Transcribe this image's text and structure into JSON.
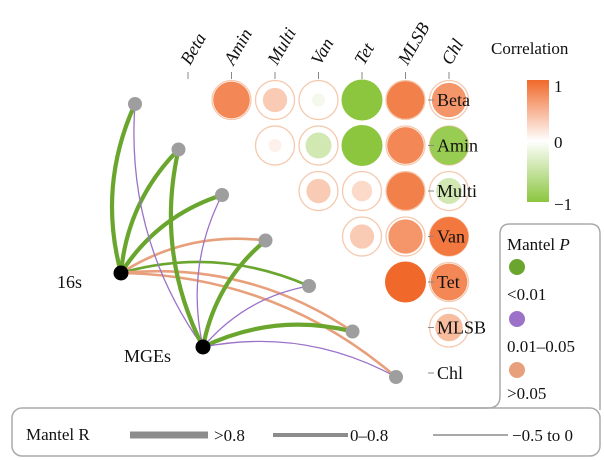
{
  "chart_data": {
    "type": "heatmap",
    "subtype": "correlation-matrix-with-mantel-links",
    "variables": [
      "Beta",
      "Amin",
      "Multi",
      "Van",
      "Tet",
      "MLSB",
      "Chl"
    ],
    "correlations": [
      {
        "row": "Beta",
        "col": "Amin",
        "r": 0.8
      },
      {
        "row": "Beta",
        "col": "Multi",
        "r": 0.35
      },
      {
        "row": "Beta",
        "col": "Van",
        "r": -0.1
      },
      {
        "row": "Beta",
        "col": "Tet",
        "r": -1.0
      },
      {
        "row": "Beta",
        "col": "MLSB",
        "r": 0.85
      },
      {
        "row": "Beta",
        "col": "Chl",
        "r": 0.7
      },
      {
        "row": "Amin",
        "col": "Multi",
        "r": 0.1
      },
      {
        "row": "Amin",
        "col": "Van",
        "r": -0.4
      },
      {
        "row": "Amin",
        "col": "Tet",
        "r": -1.0
      },
      {
        "row": "Amin",
        "col": "MLSB",
        "r": 0.8
      },
      {
        "row": "Amin",
        "col": "Chl",
        "r": -0.9
      },
      {
        "row": "Multi",
        "col": "Van",
        "r": 0.35
      },
      {
        "row": "Multi",
        "col": "Tet",
        "r": 0.25
      },
      {
        "row": "Multi",
        "col": "MLSB",
        "r": 0.85
      },
      {
        "row": "Multi",
        "col": "Chl",
        "r": -0.4
      },
      {
        "row": "Van",
        "col": "Tet",
        "r": 0.35
      },
      {
        "row": "Van",
        "col": "MLSB",
        "r": 0.7
      },
      {
        "row": "Van",
        "col": "Chl",
        "r": 0.9
      },
      {
        "row": "Tet",
        "col": "MLSB",
        "r": 1.0
      },
      {
        "row": "Tet",
        "col": "Chl",
        "r": 0.8
      },
      {
        "row": "MLSB",
        "col": "Chl",
        "r": 0.45
      }
    ],
    "mantel_sources": [
      "16s",
      "MGEs"
    ],
    "mantel_links": [
      {
        "from": "16s",
        "to": "Beta",
        "p_class": "<0.01",
        "r_class": ">0.8"
      },
      {
        "from": "16s",
        "to": "Amin",
        "p_class": "<0.01",
        "r_class": ">0.8"
      },
      {
        "from": "16s",
        "to": "Multi",
        "p_class": "<0.01",
        "r_class": ">0.8"
      },
      {
        "from": "16s",
        "to": "Van",
        "p_class": ">0.05",
        "r_class": "0–0.8"
      },
      {
        "from": "16s",
        "to": "Tet",
        "p_class": "<0.01",
        "r_class": "0–0.8"
      },
      {
        "from": "16s",
        "to": "MLSB",
        "p_class": ">0.05",
        "r_class": "0–0.8"
      },
      {
        "from": "16s",
        "to": "Chl",
        "p_class": ">0.05",
        "r_class": "0–0.8"
      },
      {
        "from": "MGEs",
        "to": "Beta",
        "p_class": "0.01–0.05",
        "r_class": "−0.5 to 0"
      },
      {
        "from": "MGEs",
        "to": "Amin",
        "p_class": "<0.01",
        "r_class": ">0.8"
      },
      {
        "from": "MGEs",
        "to": "Multi",
        "p_class": "0.01–0.05",
        "r_class": "−0.5 to 0"
      },
      {
        "from": "MGEs",
        "to": "Van",
        "p_class": "<0.01",
        "r_class": ">0.8"
      },
      {
        "from": "MGEs",
        "to": "Tet",
        "p_class": "0.01–0.05",
        "r_class": "−0.5 to 0"
      },
      {
        "from": "MGEs",
        "to": "MLSB",
        "p_class": "<0.01",
        "r_class": ">0.8"
      },
      {
        "from": "MGEs",
        "to": "Chl",
        "p_class": "0.01–0.05",
        "r_class": "−0.5 to 0"
      }
    ],
    "colorbar": {
      "title": "Correlation",
      "min": -1,
      "max": 1,
      "tick_labels": [
        "1",
        "0",
        "−1"
      ],
      "low_color": "#8cc63f",
      "mid_color": "#ffffff",
      "high_color": "#f0692a"
    },
    "legend_p": {
      "title": "Mantel",
      "title_italic": "P",
      "entries": [
        {
          "label": "<0.01",
          "color": "#6aa62e"
        },
        {
          "label": "0.01–0.05",
          "color": "#9b72c8"
        },
        {
          "label": ">0.05",
          "color": "#e8a07c"
        }
      ]
    },
    "legend_r": {
      "title": "Mantel R",
      "entries": [
        {
          "label": ">0.8",
          "weight": "thick"
        },
        {
          "label": "0–0.8",
          "weight": "medium"
        },
        {
          "label": "−0.5 to 0",
          "weight": "thin"
        }
      ],
      "line_color": "#8c8c8c"
    },
    "colors": {
      "node_grey": "#9e9e9e",
      "node_black": "#000000",
      "ring": "#f4c9ae"
    }
  }
}
